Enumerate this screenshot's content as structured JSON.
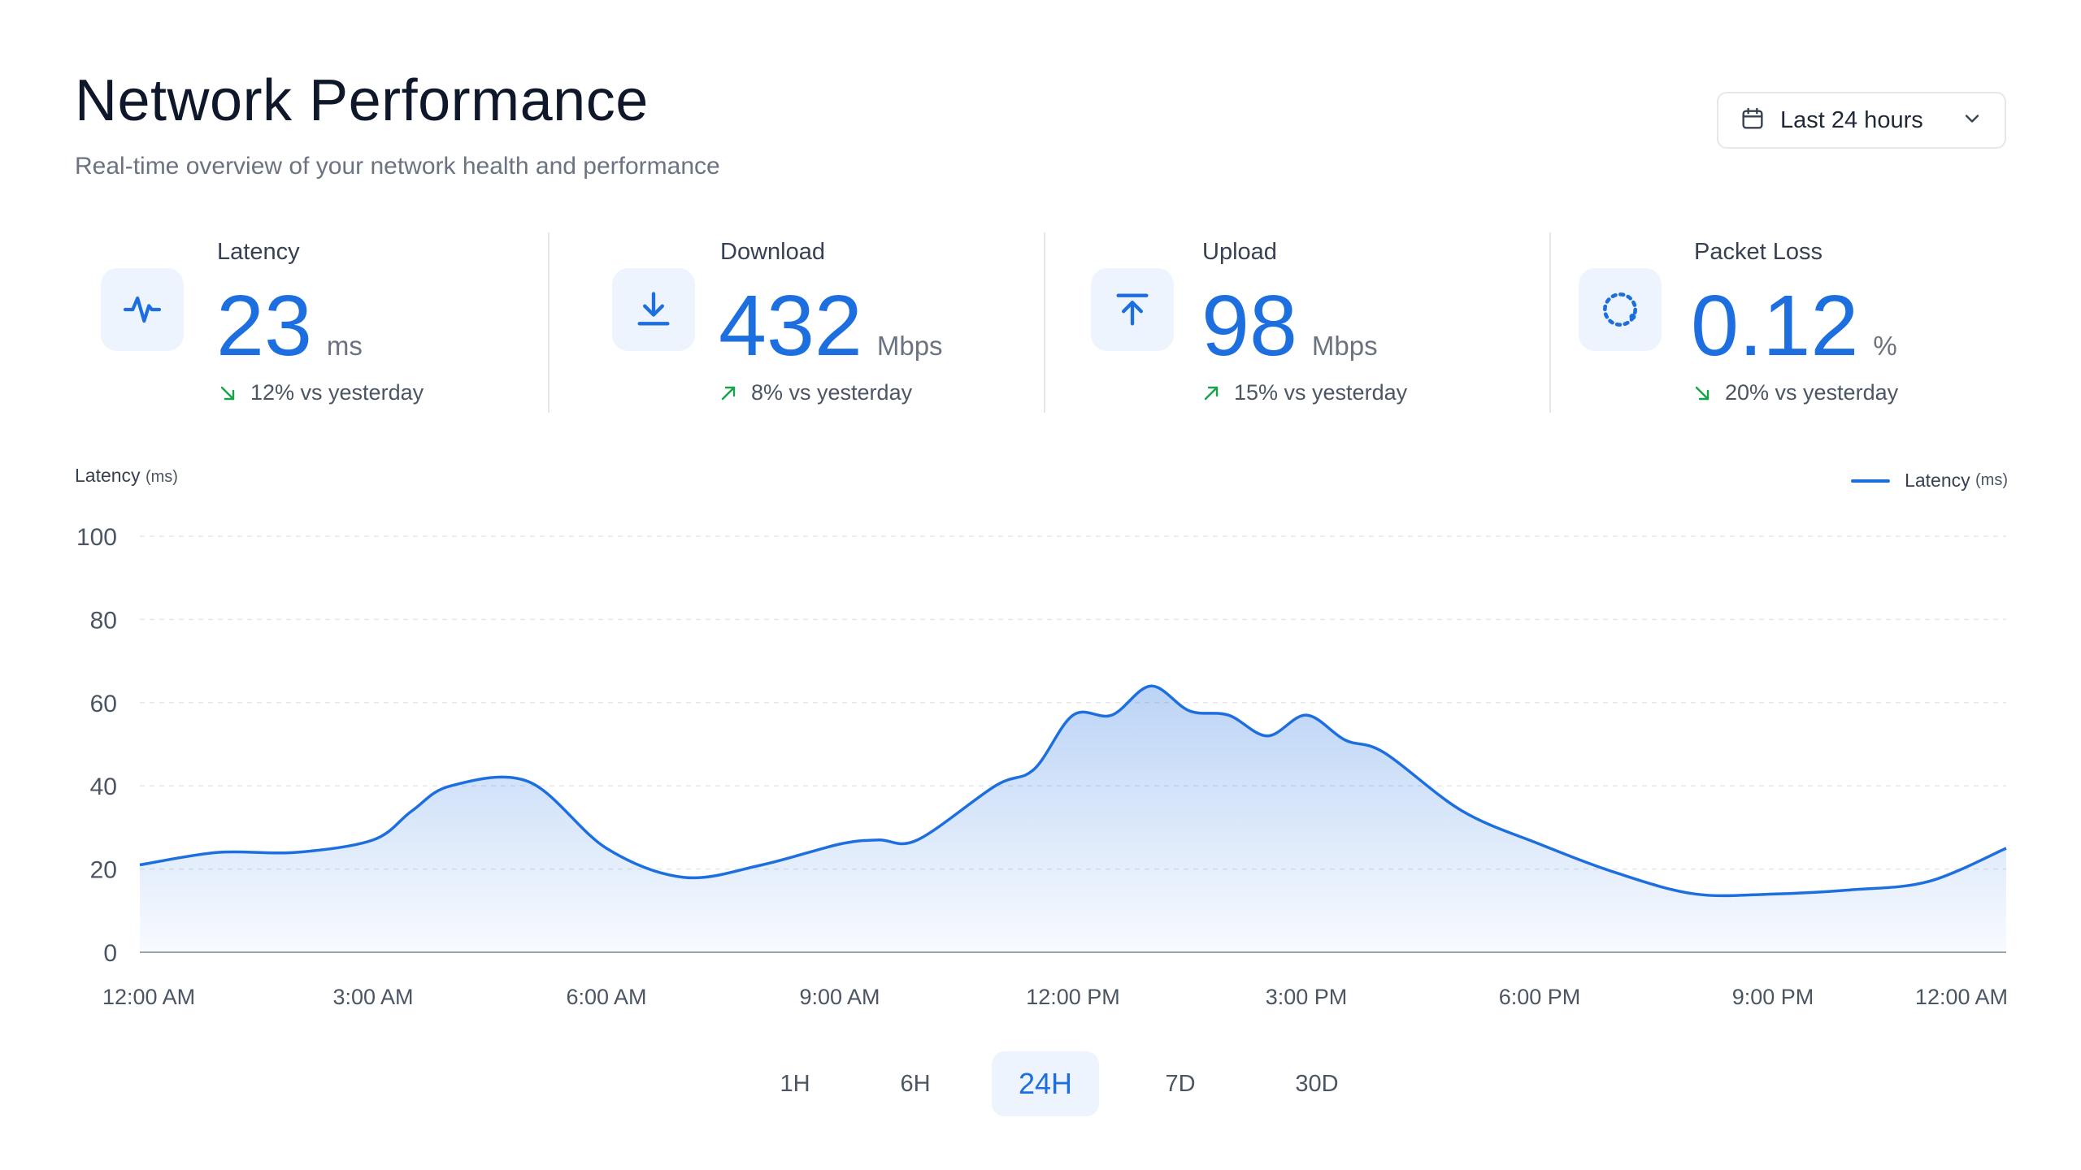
{
  "header": {
    "title": "Network Performance",
    "subtitle": "Real-time overview of your network health and performance"
  },
  "range_select": {
    "label": "Last 24 hours",
    "icon": "calendar-icon",
    "chevron_icon": "chevron-down-icon"
  },
  "kpis": [
    {
      "label": "Latency",
      "value": "23",
      "unit": "ms",
      "delta": "12% vs yesterday",
      "trend": "down",
      "icon": "activity-icon"
    },
    {
      "label": "Download",
      "value": "432",
      "unit": "Mbps",
      "delta": "8% vs yesterday",
      "trend": "up",
      "icon": "download-icon"
    },
    {
      "label": "Upload",
      "value": "98",
      "unit": "Mbps",
      "delta": "15% vs yesterday",
      "trend": "up",
      "icon": "upload-icon"
    },
    {
      "label": "Packet Loss",
      "value": "0.12",
      "unit": "%",
      "delta": "20% vs yesterday",
      "trend": "down",
      "icon": "loader-icon"
    }
  ],
  "colors": {
    "accent": "#1d6fe0",
    "trend_good": "#16a34a",
    "icon_bg": "#eef4fd"
  },
  "chart": {
    "title_main": "Latency",
    "title_unit": "(ms)",
    "legend_main": "Latency",
    "legend_unit": "(ms)"
  },
  "chart_data": {
    "type": "area",
    "xlabel": "",
    "ylabel": "Latency (ms)",
    "ylim": [
      0,
      100
    ],
    "yticks": [
      "0",
      "20",
      "40",
      "60",
      "80",
      "100"
    ],
    "xticks": [
      "12:00 AM",
      "3:00 AM",
      "6:00 AM",
      "9:00 AM",
      "12:00 PM",
      "3:00 PM",
      "6:00 PM",
      "9:00 PM",
      "12:00 AM"
    ],
    "grid": true,
    "legend": "top-right",
    "series": [
      {
        "name": "Latency (ms)",
        "x_hours": [
          0,
          1,
          2,
          3,
          3.5,
          4,
          5,
          6,
          7,
          8,
          9,
          9.5,
          10,
          11,
          11.5,
          12,
          12.5,
          13,
          13.5,
          14,
          14.5,
          15,
          15.5,
          16,
          17,
          18,
          19,
          20,
          21,
          22,
          23,
          24
        ],
        "values": [
          21,
          24,
          24,
          27,
          34,
          40,
          41,
          25,
          18,
          21,
          26,
          27,
          27,
          40,
          44,
          57,
          57,
          64,
          58,
          57,
          52,
          57,
          51,
          48,
          34,
          26,
          19,
          14,
          14,
          15,
          17,
          25
        ]
      }
    ]
  },
  "periods": [
    {
      "label": "1H",
      "active": false
    },
    {
      "label": "6H",
      "active": false
    },
    {
      "label": "24H",
      "active": true
    },
    {
      "label": "7D",
      "active": false
    },
    {
      "label": "30D",
      "active": false
    }
  ]
}
